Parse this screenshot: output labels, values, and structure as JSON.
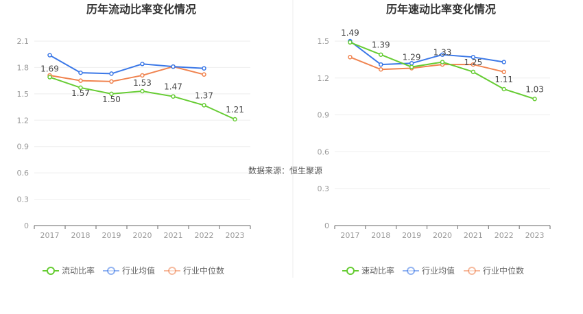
{
  "source_text": "数据来源：恒生聚源",
  "chart_data": [
    {
      "type": "line",
      "title": "历年流动比率变化情况",
      "categories": [
        "2017",
        "2018",
        "2019",
        "2020",
        "2021",
        "2022",
        "2023"
      ],
      "ylim": [
        0,
        2.1
      ],
      "yticks": [
        "0",
        "0.3",
        "0.6",
        "0.9",
        "1.2",
        "1.5",
        "1.8",
        "2.1"
      ],
      "grid": true,
      "legend_position": "bottom",
      "series": [
        {
          "name": "流动比率",
          "color": "#66cc33",
          "values": [
            1.69,
            1.57,
            1.5,
            1.53,
            1.47,
            1.37,
            1.21
          ],
          "labels": [
            "1.69",
            "1.57",
            "1.50",
            "1.53",
            "1.47",
            "1.37",
            "1.21"
          ]
        },
        {
          "name": "行业均值",
          "color": "#3b78e7",
          "values": [
            1.94,
            1.74,
            1.73,
            1.84,
            1.81,
            1.79,
            null
          ]
        },
        {
          "name": "行业中位数",
          "color": "#f0834f",
          "values": [
            1.71,
            1.65,
            1.64,
            1.71,
            1.81,
            1.72,
            null
          ]
        }
      ]
    },
    {
      "type": "line",
      "title": "历年速动比率变化情况",
      "categories": [
        "2017",
        "2018",
        "2019",
        "2020",
        "2021",
        "2022",
        "2023"
      ],
      "ylim": [
        0,
        1.5
      ],
      "yticks": [
        "0",
        "0.3",
        "0.6",
        "0.9",
        "1.2",
        "1.5"
      ],
      "grid": true,
      "legend_position": "bottom",
      "series": [
        {
          "name": "速动比率",
          "color": "#66cc33",
          "values": [
            1.49,
            1.39,
            1.29,
            1.33,
            1.25,
            1.11,
            1.03
          ],
          "labels": [
            "1.49",
            "1.39",
            "1.29",
            "1.33",
            "1.25",
            "1.11",
            "1.03"
          ]
        },
        {
          "name": "行业均值",
          "color": "#3b78e7",
          "values": [
            1.5,
            1.31,
            1.32,
            1.39,
            1.37,
            1.33,
            null
          ]
        },
        {
          "name": "行业中位数",
          "color": "#f0834f",
          "values": [
            1.37,
            1.27,
            1.28,
            1.31,
            1.31,
            1.25,
            null
          ]
        }
      ]
    }
  ]
}
